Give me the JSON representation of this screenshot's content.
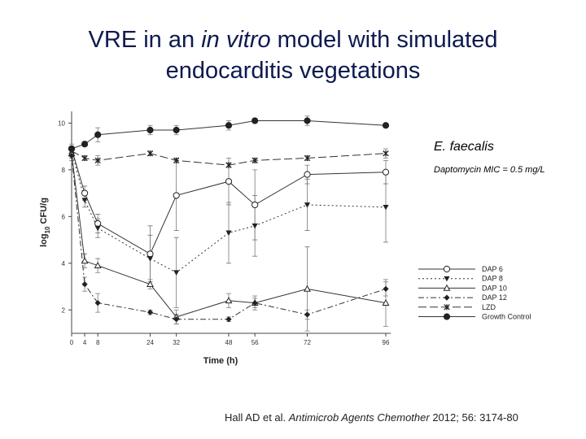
{
  "slide": {
    "title_line1_a": "VRE in an ",
    "title_line1_b": "in vitro",
    "title_line1_c": " model with simulated",
    "title_line2": "endocarditis vegetations",
    "citation_a": "Hall AD et al. ",
    "citation_b": "Antimicrob Agents Chemother",
    "citation_c": " 2012; 56: 3174-80"
  },
  "chart_data": {
    "type": "line",
    "title": "",
    "xlabel": "Time (h)",
    "ylabel_parts": [
      "log",
      "10",
      " CFU/g"
    ],
    "x_ticks": [
      0,
      4,
      8,
      24,
      32,
      48,
      56,
      72,
      96
    ],
    "y_ticks": [
      2,
      4,
      6,
      8,
      10
    ],
    "xlim": [
      0,
      96
    ],
    "ylim": [
      1,
      10.5
    ],
    "annotations": {
      "organism": "E. faecalis",
      "mic": "Daptomycin MIC = 0.5 mg/L"
    },
    "legend_position": "lower-right",
    "series": [
      {
        "name": "DAP 6",
        "marker": "circle-open",
        "dash": "solid",
        "x": [
          0,
          4,
          8,
          24,
          32,
          48,
          56,
          72,
          96
        ],
        "y": [
          8.9,
          7.0,
          5.7,
          4.4,
          6.9,
          7.5,
          6.5,
          7.8,
          7.9
        ],
        "err": [
          0.2,
          0.3,
          0.4,
          1.2,
          1.5,
          1.0,
          1.5,
          0.4,
          0.5
        ]
      },
      {
        "name": "DAP 8",
        "marker": "triangle-down-filled",
        "dash": "dotted",
        "x": [
          0,
          4,
          8,
          24,
          32,
          48,
          56,
          72,
          96
        ],
        "y": [
          8.8,
          6.7,
          5.5,
          4.2,
          3.6,
          5.3,
          5.6,
          6.5,
          6.4
        ],
        "err": [
          0.2,
          0.3,
          0.4,
          1.0,
          1.5,
          1.3,
          1.3,
          1.1,
          1.5
        ]
      },
      {
        "name": "DAP 10",
        "marker": "triangle-up-open",
        "dash": "solid",
        "x": [
          0,
          4,
          8,
          24,
          32,
          48,
          56,
          72,
          96
        ],
        "y": [
          8.7,
          4.1,
          3.9,
          3.1,
          1.7,
          2.4,
          2.3,
          2.9,
          2.3
        ],
        "err": [
          0.2,
          0.3,
          0.3,
          0.2,
          0.3,
          0.3,
          0.3,
          1.8,
          1.0
        ]
      },
      {
        "name": "DAP 12",
        "marker": "diamond-filled",
        "dash": "dashdot",
        "x": [
          0,
          4,
          8,
          24,
          32,
          48,
          56,
          72,
          96
        ],
        "y": [
          8.6,
          3.1,
          2.3,
          1.9,
          1.6,
          1.6,
          2.3,
          1.8,
          2.9
        ],
        "err": [
          0.2,
          0.3,
          0.4,
          0.1,
          0.2,
          0.1,
          0.2,
          0.2,
          0.3
        ]
      },
      {
        "name": "LZD",
        "marker": "star",
        "dash": "longdash",
        "x": [
          0,
          4,
          8,
          24,
          32,
          48,
          56,
          72,
          96
        ],
        "y": [
          8.8,
          8.5,
          8.4,
          8.7,
          8.4,
          8.2,
          8.4,
          8.5,
          8.7
        ],
        "err": [
          0.1,
          0.1,
          0.2,
          0.1,
          0.1,
          0.1,
          0.1,
          0.1,
          0.2
        ]
      },
      {
        "name": "Growth Control",
        "marker": "circle-filled",
        "dash": "solid",
        "x": [
          0,
          4,
          8,
          24,
          32,
          48,
          56,
          72,
          96
        ],
        "y": [
          8.9,
          9.1,
          9.5,
          9.7,
          9.7,
          9.9,
          10.1,
          10.1,
          9.9
        ],
        "err": [
          0.1,
          0.1,
          0.3,
          0.2,
          0.2,
          0.2,
          0.1,
          0.2,
          0.1
        ]
      }
    ]
  }
}
